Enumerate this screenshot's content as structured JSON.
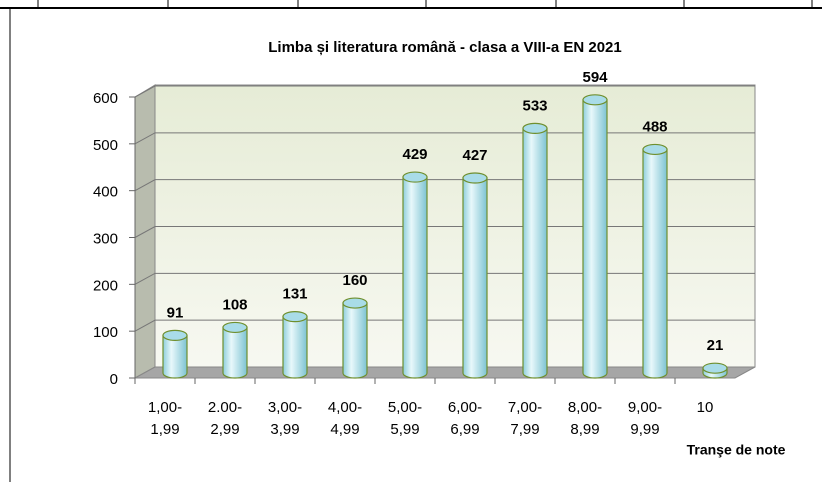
{
  "chart_data": {
    "type": "bar",
    "title": "Limba și literatura română - clasa a VIII-a EN 2021",
    "x_label": "Tranşe de note",
    "categories": [
      "1,00-\n1,99",
      "2.00-\n2,99",
      "3,00-\n3,99",
      "4,00-\n4,99",
      "5,00-\n5,99",
      "6,00-\n6,99",
      "7,00-\n7,99",
      "8,00-\n8,99",
      "9,00-\n9,99",
      "10"
    ],
    "values": [
      91,
      108,
      131,
      160,
      429,
      427,
      533,
      594,
      488,
      21
    ],
    "color": "#b7e6f0",
    "ylim": [
      0,
      600
    ],
    "yticks": [
      0,
      100,
      200,
      300,
      400,
      500,
      600
    ],
    "grid": true
  }
}
